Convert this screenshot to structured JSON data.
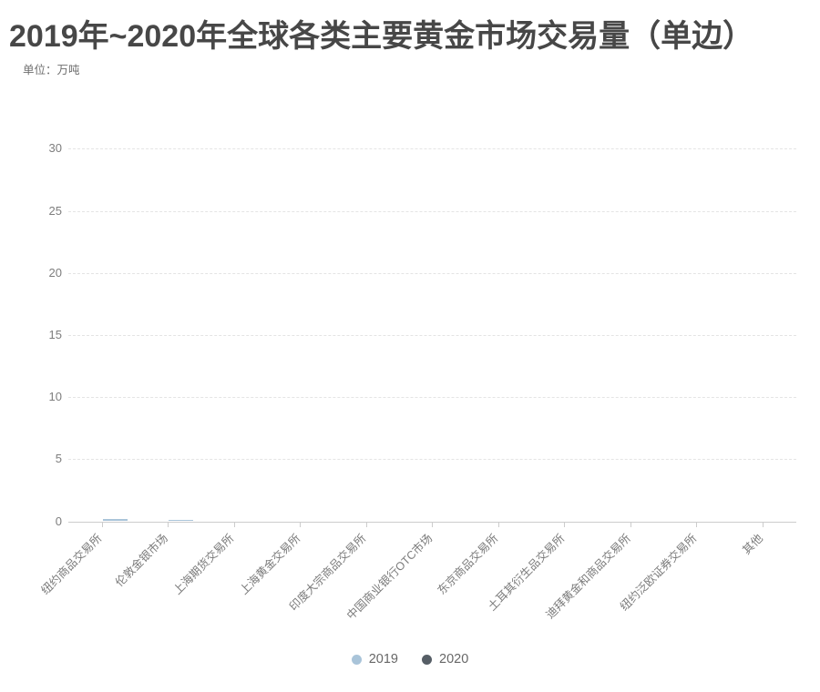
{
  "header": {
    "title": "2019年~2020年全球各类主要黄金市场交易量（单边）",
    "unit_label": "单位：万吨"
  },
  "chart_data": {
    "type": "bar",
    "title": "2019年~2020年全球各类主要黄金市场交易量（单边）",
    "subtitle": "单位：万吨",
    "categories": [
      "纽约商品交易所",
      "伦敦金银市场",
      "上海期货交易所",
      "上海黄金交易所",
      "印度大宗商品交易所",
      "中国商业银行OTC市场",
      "东京商品交易所",
      "土耳其衍生品交易所",
      "迪拜黄金和商品交易所",
      "纽约泛欧证券交易所",
      "其他"
    ],
    "series": [
      {
        "name": "2019",
        "color": "#a9c4d9",
        "values": [
          0.15,
          0.12,
          0,
          0,
          0,
          0,
          0,
          0,
          0,
          0,
          0
        ]
      },
      {
        "name": "2020",
        "color": "#565e66",
        "values": [
          0,
          0,
          0,
          0,
          0,
          0,
          0,
          0,
          0,
          0,
          0
        ]
      }
    ],
    "xlabel": "",
    "ylabel": "",
    "ylim": [
      0,
      30
    ],
    "yticks": [
      0,
      5,
      10,
      15,
      20,
      25,
      30
    ],
    "grid": "horizontal-dashed",
    "legend_position": "bottom",
    "legend": [
      "2019",
      "2020"
    ]
  }
}
